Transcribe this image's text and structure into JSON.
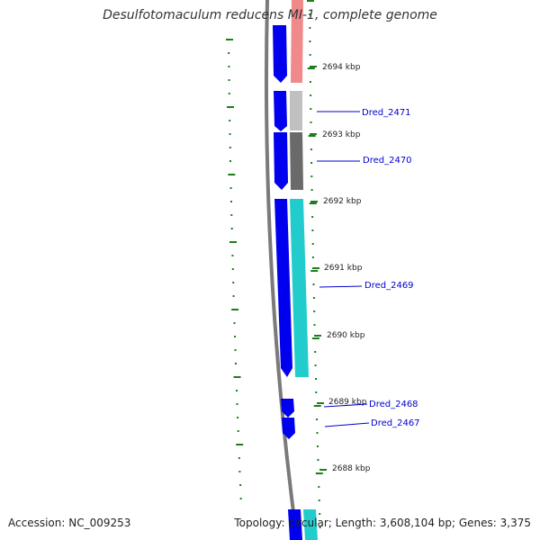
{
  "title": "Desulfotomaculum reducens MI-1, complete genome",
  "footer": {
    "accession": "Accession: NC_009253",
    "summary": "Topology: circular; Length: 3,608,104 bp; Genes: 3,375"
  },
  "colors": {
    "backbone": "#7a7a7a",
    "cds_forward": "#0000ee",
    "tick": "#1a7f1a",
    "gene_label": "#0000cc",
    "cog_pink": "#f08a8a",
    "cog_light_gray": "#c0c0c0",
    "cog_dark_gray": "#6a6a6a",
    "cog_cyan": "#22cccc"
  },
  "scale_labels": [
    {
      "text": "2694 kbp"
    },
    {
      "text": "2693 kbp"
    },
    {
      "text": "2692 kbp"
    },
    {
      "text": "2691 kbp"
    },
    {
      "text": "2690 kbp"
    },
    {
      "text": "2689 kbp"
    },
    {
      "text": "2688 kbp"
    }
  ],
  "genes": [
    {
      "label": "Dred_2471",
      "category_color": "cog_light_gray"
    },
    {
      "label": "Dred_2470",
      "category_color": "cog_dark_gray"
    },
    {
      "label": "Dred_2469",
      "category_color": "cog_cyan"
    },
    {
      "label": "Dred_2468",
      "category_color": ""
    },
    {
      "label": "Dred_2467",
      "category_color": ""
    }
  ]
}
